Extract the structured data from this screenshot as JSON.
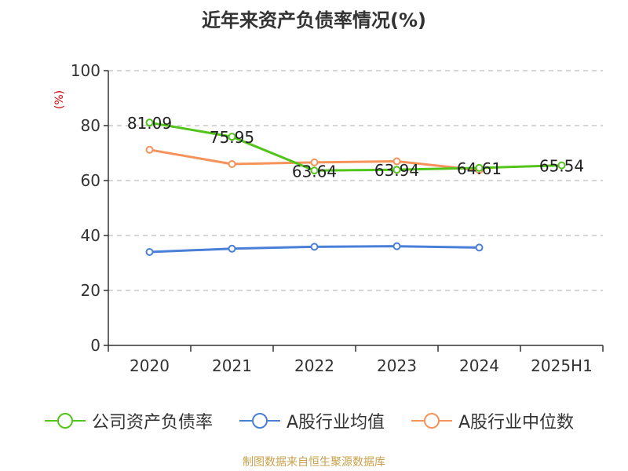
{
  "title": "近年来资产负债率情况(%)",
  "source": "制图数据来自恒生聚源数据库",
  "chart_data": {
    "type": "line",
    "title": "近年来资产负债率情况(%)",
    "ylabel": "(%)",
    "xlabel": "",
    "categories": [
      "2020",
      "2021",
      "2022",
      "2023",
      "2024",
      "2025H1"
    ],
    "ylim": [
      0,
      100
    ],
    "yticks": [
      0,
      20,
      40,
      60,
      80,
      100
    ],
    "grid": true,
    "legend_position": "bottom",
    "series": [
      {
        "name": "公司资产负债率",
        "color": "#52c41a",
        "values": [
          81.09,
          75.95,
          63.64,
          63.94,
          64.61,
          65.54
        ],
        "labels": [
          "81.09",
          "75.95",
          "63.64",
          "63.94",
          "64.61",
          "65.54"
        ]
      },
      {
        "name": "A股行业均值",
        "color": "#4a7fd8",
        "values": [
          34.0,
          35.2,
          35.9,
          36.1,
          35.6,
          null
        ]
      },
      {
        "name": "A股行业中位数",
        "color": "#f5935a",
        "values": [
          71.2,
          66.0,
          66.6,
          67.0,
          63.8,
          null
        ]
      }
    ]
  }
}
